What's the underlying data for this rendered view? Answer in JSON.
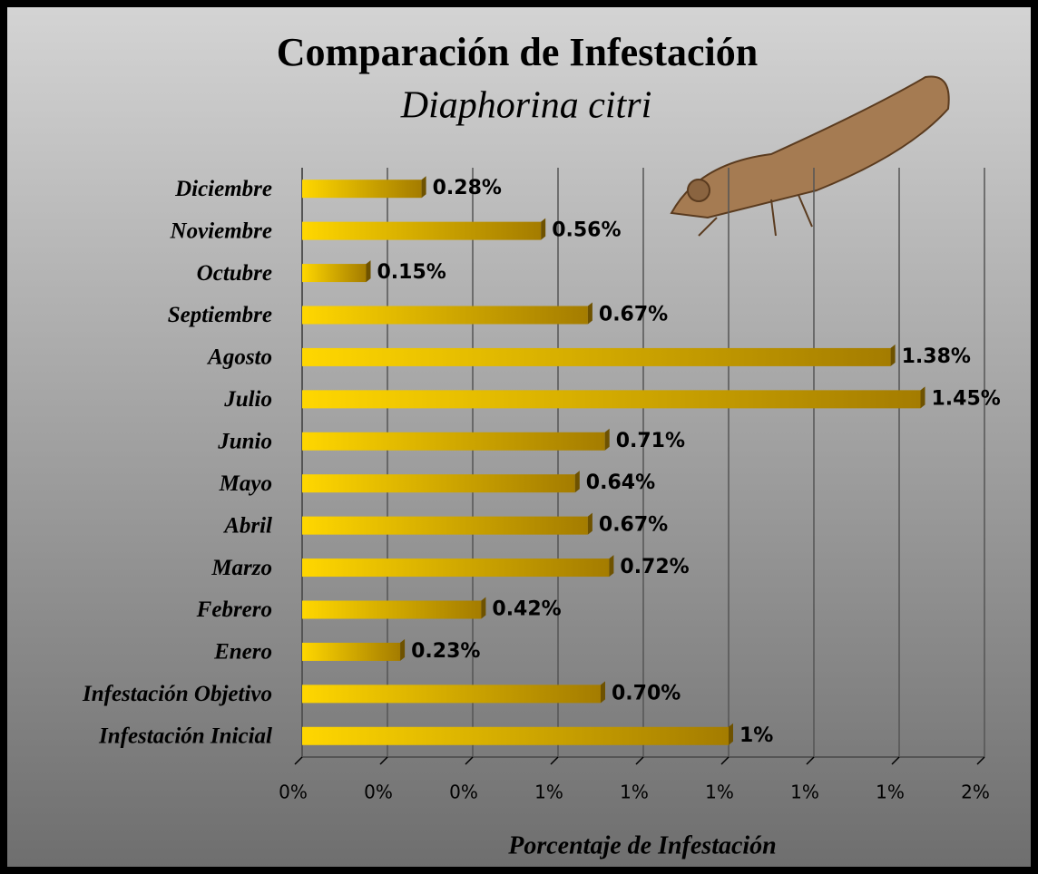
{
  "chart_data": {
    "type": "bar",
    "orientation": "horizontal",
    "title": "Comparación de Infestación",
    "subtitle": "Diaphorina citri",
    "xlabel": "Porcentaje de Infestación",
    "categories": [
      "Infestación Inicial",
      "Infestación Objetivo",
      "Enero",
      "Febrero",
      "Marzo",
      "Abril",
      "Mayo",
      "Junio",
      "Julio",
      "Agosto",
      "Septiembre",
      "Octubre",
      "Noviembre",
      "Diciembre"
    ],
    "values": [
      1,
      0.7,
      0.23,
      0.42,
      0.72,
      0.67,
      0.64,
      0.71,
      1.45,
      1.38,
      0.67,
      0.15,
      0.56,
      0.28
    ],
    "value_labels": [
      "1%",
      "0.70%",
      "0.23%",
      "0.42%",
      "0.72%",
      "0.67%",
      "0.64%",
      "0.71%",
      "1.45%",
      "1.38%",
      "0.67%",
      "0.15%",
      "0.56%",
      "0.28%"
    ],
    "color": "#ffd700",
    "xlim": [
      0,
      1.6
    ],
    "xticks": [
      {
        "value": 0,
        "label": "0%"
      },
      {
        "value": 0.2,
        "label": "0%"
      },
      {
        "value": 0.4,
        "label": "0%"
      },
      {
        "value": 0.6,
        "label": "1%"
      },
      {
        "value": 0.8,
        "label": "1%"
      },
      {
        "value": 1.0,
        "label": "1%"
      },
      {
        "value": 1.2,
        "label": "1%"
      },
      {
        "value": 1.4,
        "label": "1%"
      },
      {
        "value": 1.6,
        "label": "2%"
      }
    ],
    "grid": true
  }
}
